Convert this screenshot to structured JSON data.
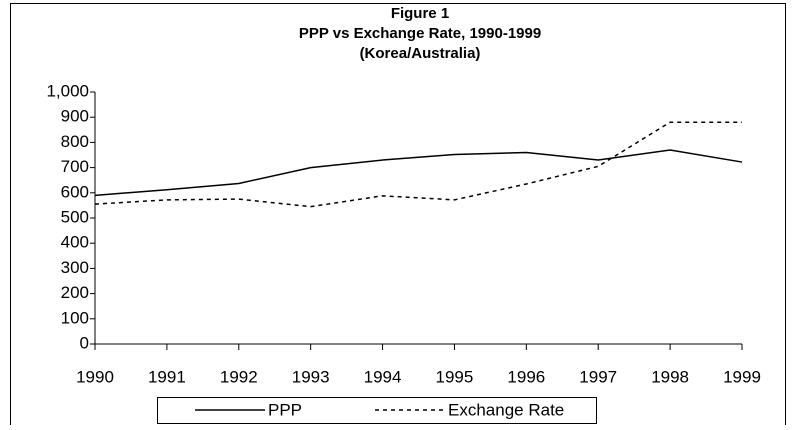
{
  "chart_data": {
    "type": "line",
    "title": "Figure 1",
    "subtitle": "PPP vs Exchange Rate, 1990-1999",
    "subtitle2": "(Korea/Australia)",
    "x": [
      1990,
      1991,
      1992,
      1993,
      1994,
      1995,
      1996,
      1997,
      1998,
      1999
    ],
    "series": [
      {
        "name": "PPP",
        "color": "#000000",
        "dash": "solid",
        "values": [
          590,
          612,
          637,
          700,
          730,
          752,
          760,
          730,
          770,
          722
        ]
      },
      {
        "name": "Exchange Rate",
        "color": "#000000",
        "dash": "dotted",
        "values": [
          555,
          572,
          575,
          545,
          588,
          572,
          635,
          705,
          880,
          880
        ]
      }
    ],
    "xlim": [
      1990,
      1999
    ],
    "xticks": [
      1990,
      1991,
      1992,
      1993,
      1994,
      1995,
      1996,
      1997,
      1998,
      1999
    ],
    "ylim": [
      0,
      1000
    ],
    "yticks": [
      0,
      100,
      200,
      300,
      400,
      500,
      600,
      700,
      800,
      900,
      {
        "value": 1000,
        "label": "1,000"
      }
    ],
    "grid": false,
    "legend": "bottom"
  }
}
